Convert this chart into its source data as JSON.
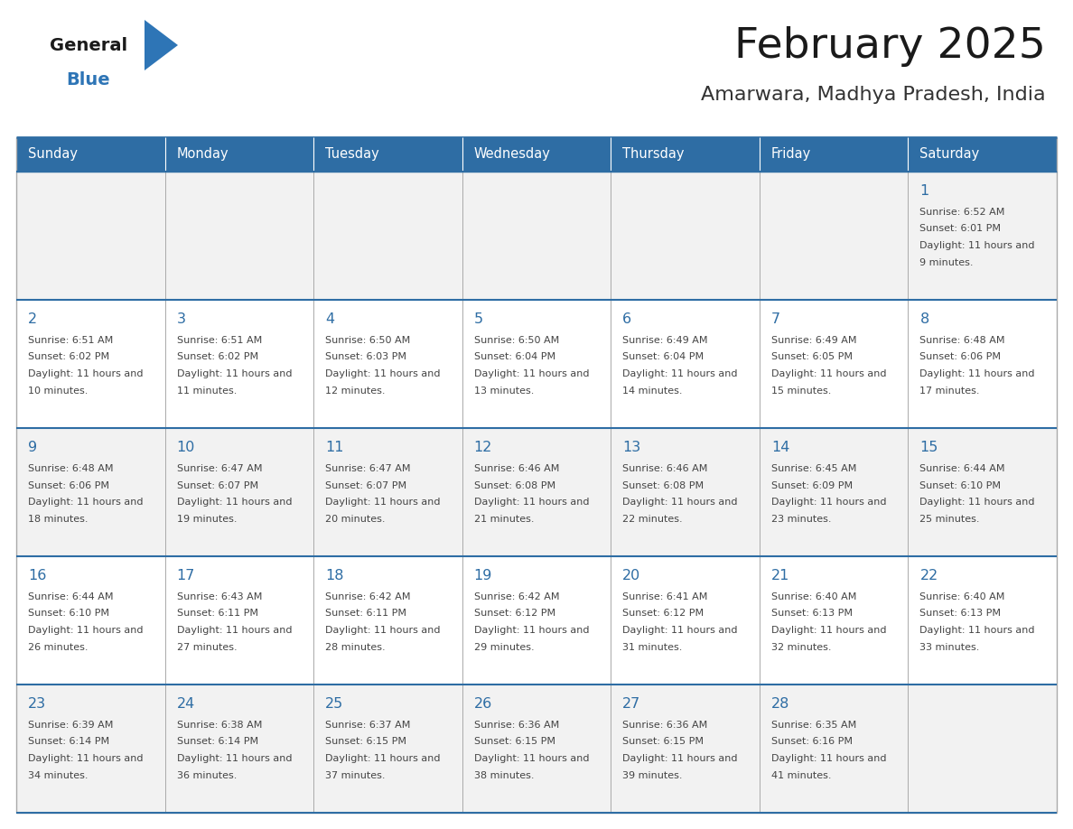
{
  "title": "February 2025",
  "subtitle": "Amarwara, Madhya Pradesh, India",
  "header_bg": "#2E6DA4",
  "header_text": "#FFFFFF",
  "day_names": [
    "Sunday",
    "Monday",
    "Tuesday",
    "Wednesday",
    "Thursday",
    "Friday",
    "Saturday"
  ],
  "cell_bg_light": "#F2F2F2",
  "cell_bg_white": "#FFFFFF",
  "cell_border": "#AAAAAA",
  "row_separator": "#2E6DA4",
  "day_num_color": "#2E6DA4",
  "info_color": "#444444",
  "title_color": "#1a1a1a",
  "subtitle_color": "#333333",
  "logo_general_color": "#1a1a1a",
  "logo_blue_color": "#2E75B6",
  "calendar_data": [
    [
      null,
      null,
      null,
      null,
      null,
      null,
      {
        "day": 1,
        "sunrise": "6:52 AM",
        "sunset": "6:01 PM",
        "daylight": "11 hours and 9 minutes."
      }
    ],
    [
      {
        "day": 2,
        "sunrise": "6:51 AM",
        "sunset": "6:02 PM",
        "daylight": "11 hours and 10 minutes."
      },
      {
        "day": 3,
        "sunrise": "6:51 AM",
        "sunset": "6:02 PM",
        "daylight": "11 hours and 11 minutes."
      },
      {
        "day": 4,
        "sunrise": "6:50 AM",
        "sunset": "6:03 PM",
        "daylight": "11 hours and 12 minutes."
      },
      {
        "day": 5,
        "sunrise": "6:50 AM",
        "sunset": "6:04 PM",
        "daylight": "11 hours and 13 minutes."
      },
      {
        "day": 6,
        "sunrise": "6:49 AM",
        "sunset": "6:04 PM",
        "daylight": "11 hours and 14 minutes."
      },
      {
        "day": 7,
        "sunrise": "6:49 AM",
        "sunset": "6:05 PM",
        "daylight": "11 hours and 15 minutes."
      },
      {
        "day": 8,
        "sunrise": "6:48 AM",
        "sunset": "6:06 PM",
        "daylight": "11 hours and 17 minutes."
      }
    ],
    [
      {
        "day": 9,
        "sunrise": "6:48 AM",
        "sunset": "6:06 PM",
        "daylight": "11 hours and 18 minutes."
      },
      {
        "day": 10,
        "sunrise": "6:47 AM",
        "sunset": "6:07 PM",
        "daylight": "11 hours and 19 minutes."
      },
      {
        "day": 11,
        "sunrise": "6:47 AM",
        "sunset": "6:07 PM",
        "daylight": "11 hours and 20 minutes."
      },
      {
        "day": 12,
        "sunrise": "6:46 AM",
        "sunset": "6:08 PM",
        "daylight": "11 hours and 21 minutes."
      },
      {
        "day": 13,
        "sunrise": "6:46 AM",
        "sunset": "6:08 PM",
        "daylight": "11 hours and 22 minutes."
      },
      {
        "day": 14,
        "sunrise": "6:45 AM",
        "sunset": "6:09 PM",
        "daylight": "11 hours and 23 minutes."
      },
      {
        "day": 15,
        "sunrise": "6:44 AM",
        "sunset": "6:10 PM",
        "daylight": "11 hours and 25 minutes."
      }
    ],
    [
      {
        "day": 16,
        "sunrise": "6:44 AM",
        "sunset": "6:10 PM",
        "daylight": "11 hours and 26 minutes."
      },
      {
        "day": 17,
        "sunrise": "6:43 AM",
        "sunset": "6:11 PM",
        "daylight": "11 hours and 27 minutes."
      },
      {
        "day": 18,
        "sunrise": "6:42 AM",
        "sunset": "6:11 PM",
        "daylight": "11 hours and 28 minutes."
      },
      {
        "day": 19,
        "sunrise": "6:42 AM",
        "sunset": "6:12 PM",
        "daylight": "11 hours and 29 minutes."
      },
      {
        "day": 20,
        "sunrise": "6:41 AM",
        "sunset": "6:12 PM",
        "daylight": "11 hours and 31 minutes."
      },
      {
        "day": 21,
        "sunrise": "6:40 AM",
        "sunset": "6:13 PM",
        "daylight": "11 hours and 32 minutes."
      },
      {
        "day": 22,
        "sunrise": "6:40 AM",
        "sunset": "6:13 PM",
        "daylight": "11 hours and 33 minutes."
      }
    ],
    [
      {
        "day": 23,
        "sunrise": "6:39 AM",
        "sunset": "6:14 PM",
        "daylight": "11 hours and 34 minutes."
      },
      {
        "day": 24,
        "sunrise": "6:38 AM",
        "sunset": "6:14 PM",
        "daylight": "11 hours and 36 minutes."
      },
      {
        "day": 25,
        "sunrise": "6:37 AM",
        "sunset": "6:15 PM",
        "daylight": "11 hours and 37 minutes."
      },
      {
        "day": 26,
        "sunrise": "6:36 AM",
        "sunset": "6:15 PM",
        "daylight": "11 hours and 38 minutes."
      },
      {
        "day": 27,
        "sunrise": "6:36 AM",
        "sunset": "6:15 PM",
        "daylight": "11 hours and 39 minutes."
      },
      {
        "day": 28,
        "sunrise": "6:35 AM",
        "sunset": "6:16 PM",
        "daylight": "11 hours and 41 minutes."
      },
      null
    ]
  ]
}
